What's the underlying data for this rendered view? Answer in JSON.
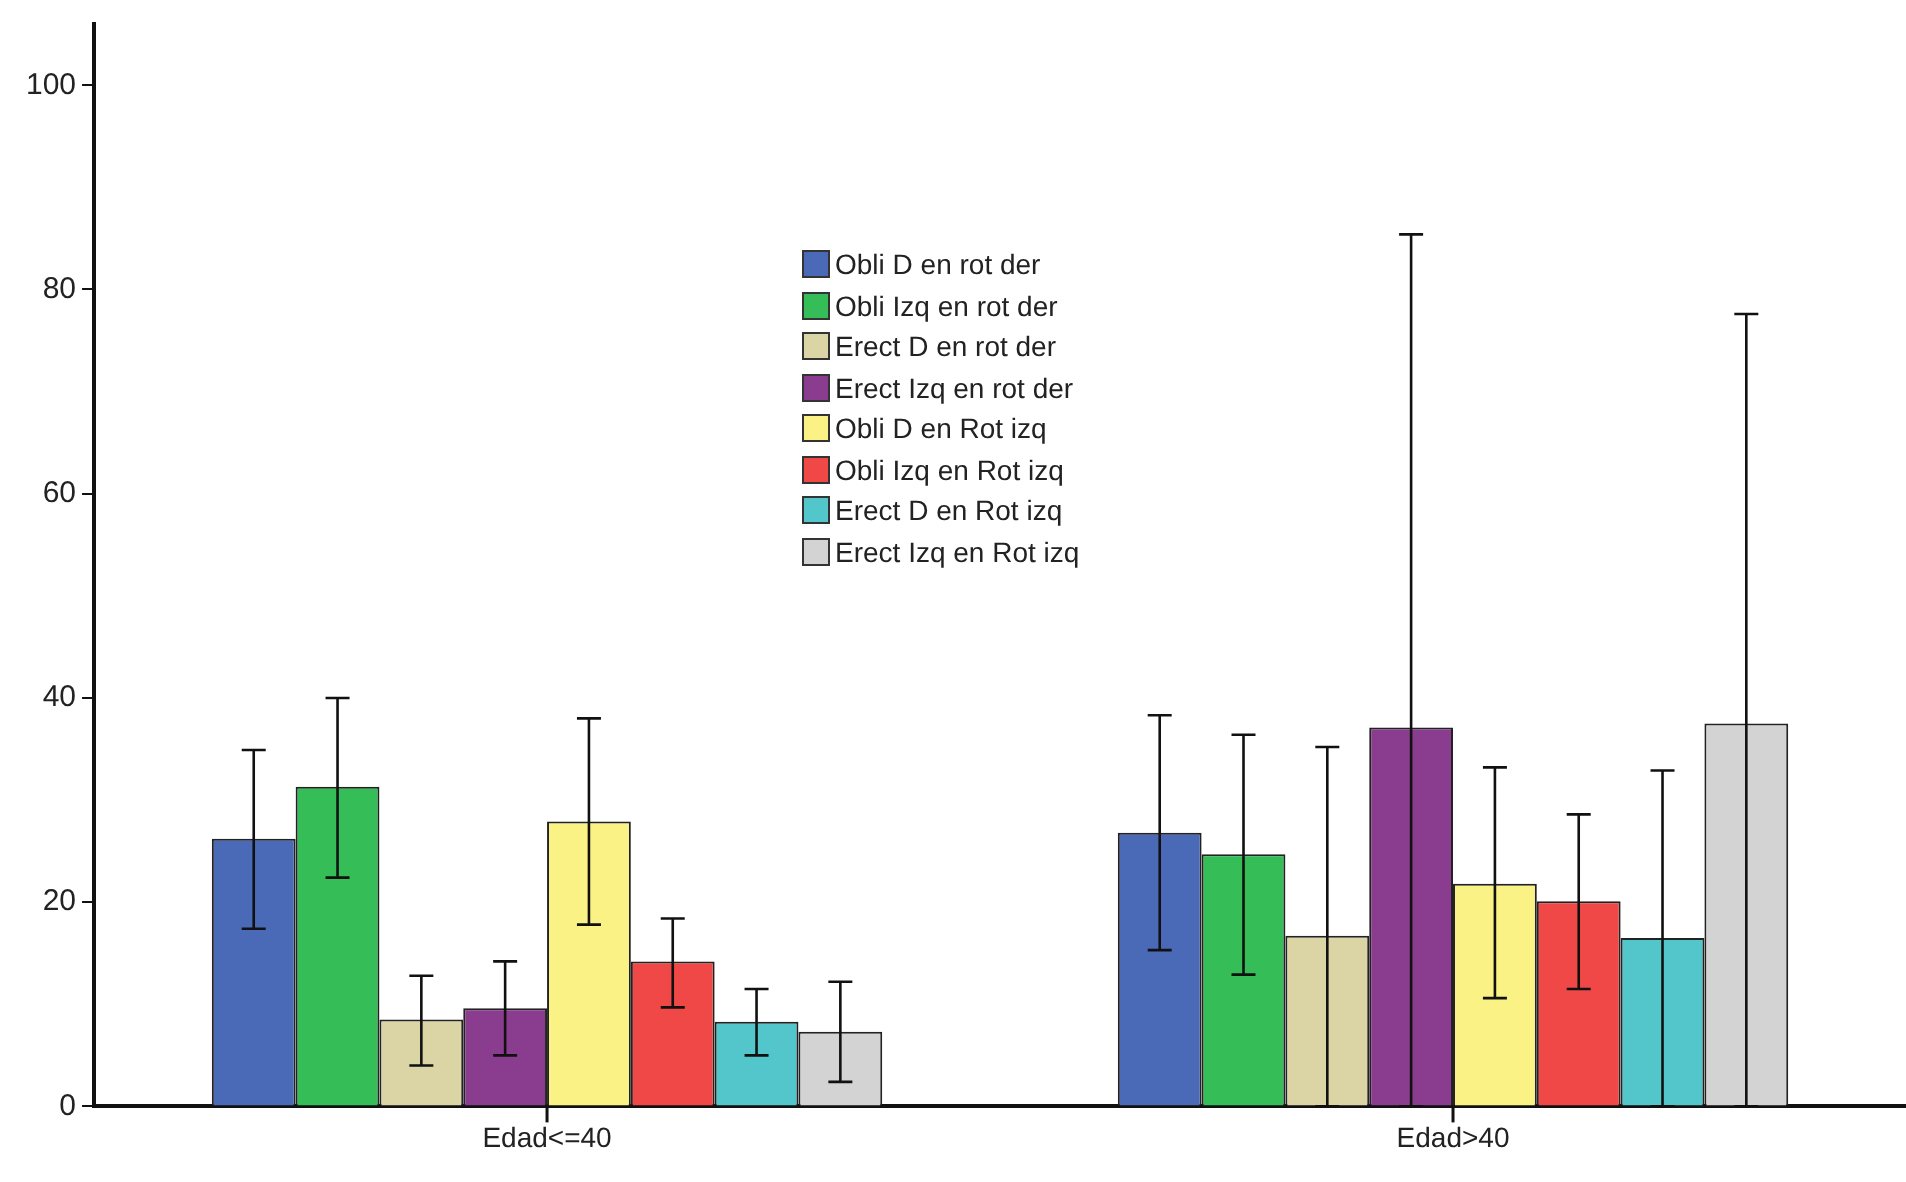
{
  "chart_data": {
    "type": "bar",
    "categories": [
      "Edad<=40",
      "Edad>40"
    ],
    "series": [
      {
        "name": "Obli D en rot der",
        "color": "#4a6ab8",
        "values": [
          26.2,
          26.8
        ],
        "errors": [
          [
            17.4,
            34.9
          ],
          [
            15.3,
            38.3
          ]
        ]
      },
      {
        "name": "Obli Izq en rot der",
        "color": "#35bd58",
        "values": [
          31.3,
          24.7
        ],
        "errors": [
          [
            22.4,
            40.0
          ],
          [
            12.9,
            36.4
          ]
        ]
      },
      {
        "name": "Erect D en rot der",
        "color": "#dbd5a6",
        "values": [
          8.5,
          16.7
        ],
        "errors": [
          [
            4.0,
            12.8
          ],
          [
            0,
            35.2
          ]
        ]
      },
      {
        "name": "Erect Izq en rot der",
        "color": "#8a3d8e",
        "values": [
          9.6,
          37.1
        ],
        "errors": [
          [
            5.0,
            14.2
          ],
          [
            0,
            85.4
          ]
        ]
      },
      {
        "name": "Obli D en Rot izq",
        "color": "#fbf286",
        "values": [
          27.9,
          21.8
        ],
        "errors": [
          [
            17.8,
            38.0
          ],
          [
            10.6,
            33.2
          ]
        ]
      },
      {
        "name": "Obli Izq en Rot izq",
        "color": "#ef4847",
        "values": [
          14.2,
          20.1
        ],
        "errors": [
          [
            9.7,
            18.4
          ],
          [
            11.5,
            28.6
          ]
        ]
      },
      {
        "name": "Erect D en Rot izq",
        "color": "#53c6cc",
        "values": [
          8.3,
          16.5
        ],
        "errors": [
          [
            5.0,
            11.5
          ],
          [
            0,
            32.9
          ]
        ]
      },
      {
        "name": "Erect Izq en Rot izq",
        "color": "#d3d3d3",
        "values": [
          7.3,
          37.5
        ],
        "errors": [
          [
            2.4,
            12.2
          ],
          [
            0,
            77.6
          ]
        ]
      }
    ],
    "ylim": [
      0,
      106
    ],
    "yticks": [
      0,
      20,
      40,
      60,
      80,
      100
    ],
    "grid": false,
    "legend": "top"
  }
}
